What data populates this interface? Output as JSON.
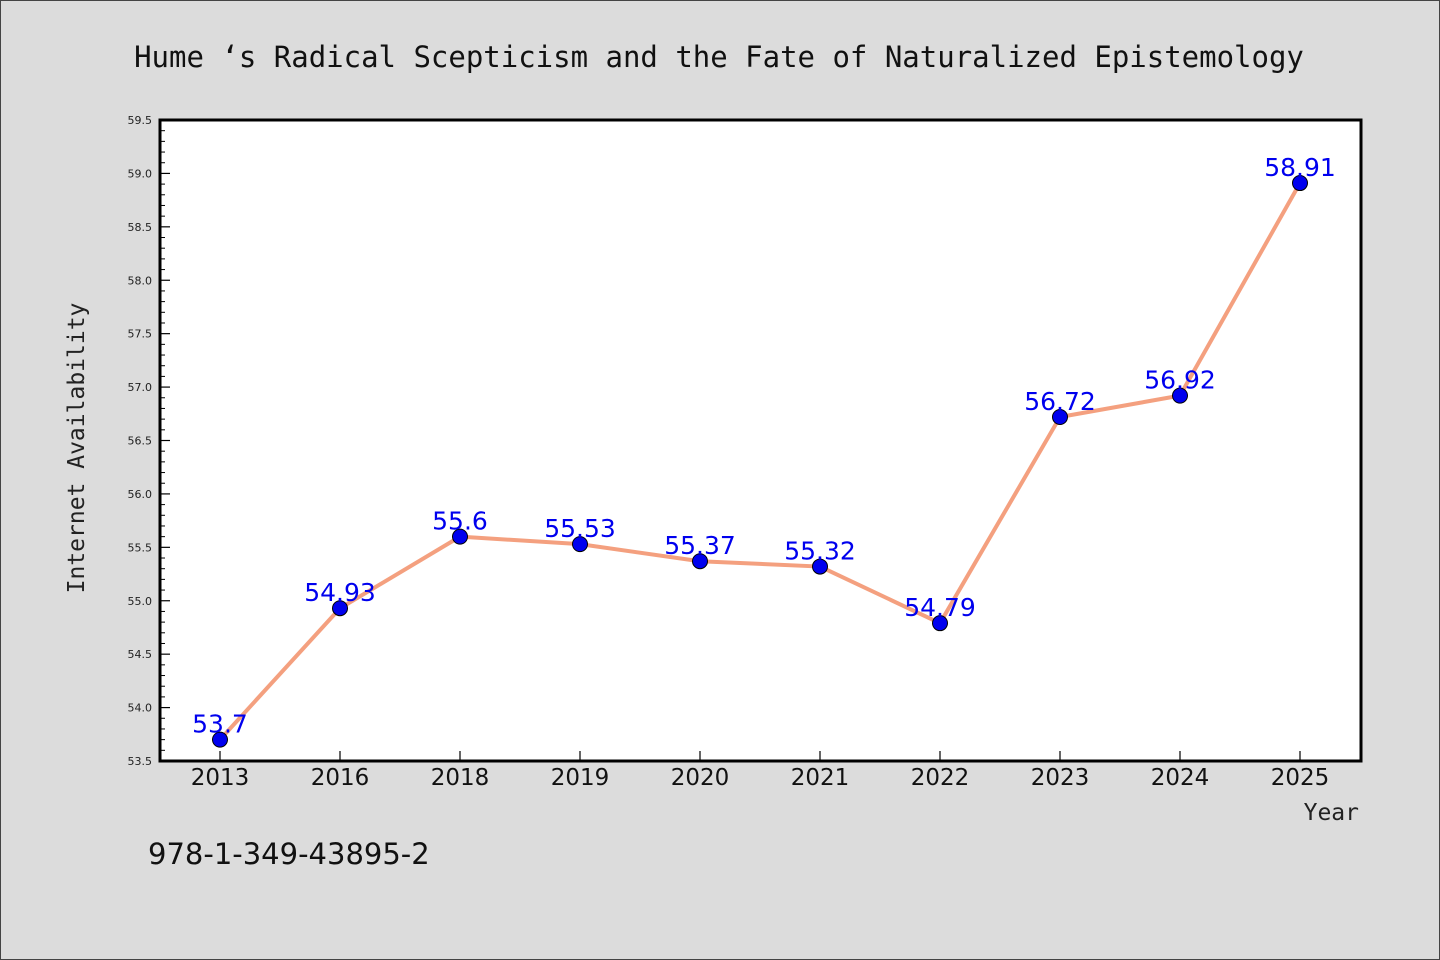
{
  "chart_data": {
    "type": "line",
    "title": "Hume ‘s Radical Scepticism and the Fate of Naturalized Epistemology",
    "xlabel": "Year",
    "ylabel": "Internet Availability",
    "categories": [
      "2013",
      "2016",
      "2018",
      "2019",
      "2020",
      "2021",
      "2022",
      "2023",
      "2024",
      "2025"
    ],
    "values": [
      53.7,
      54.93,
      55.6,
      55.53,
      55.37,
      55.32,
      54.79,
      56.72,
      56.92,
      58.91
    ],
    "data_labels": [
      "53.7",
      "54.93",
      "55.6",
      "55.53",
      "55.37",
      "55.32",
      "54.79",
      "56.72",
      "56.92",
      "58.91"
    ],
    "ylim": [
      53.5,
      59.5
    ],
    "yticks": [
      "53.5",
      "54.0",
      "54.5",
      "55.0",
      "55.5",
      "56.0",
      "56.5",
      "57.0",
      "57.5",
      "58.0",
      "58.5",
      "59.0",
      "59.5"
    ],
    "grid": false,
    "line_color": "#f4a07f",
    "marker_color": "#0000ee"
  },
  "footer": {
    "isbn": "978-1-349-43895-2"
  }
}
